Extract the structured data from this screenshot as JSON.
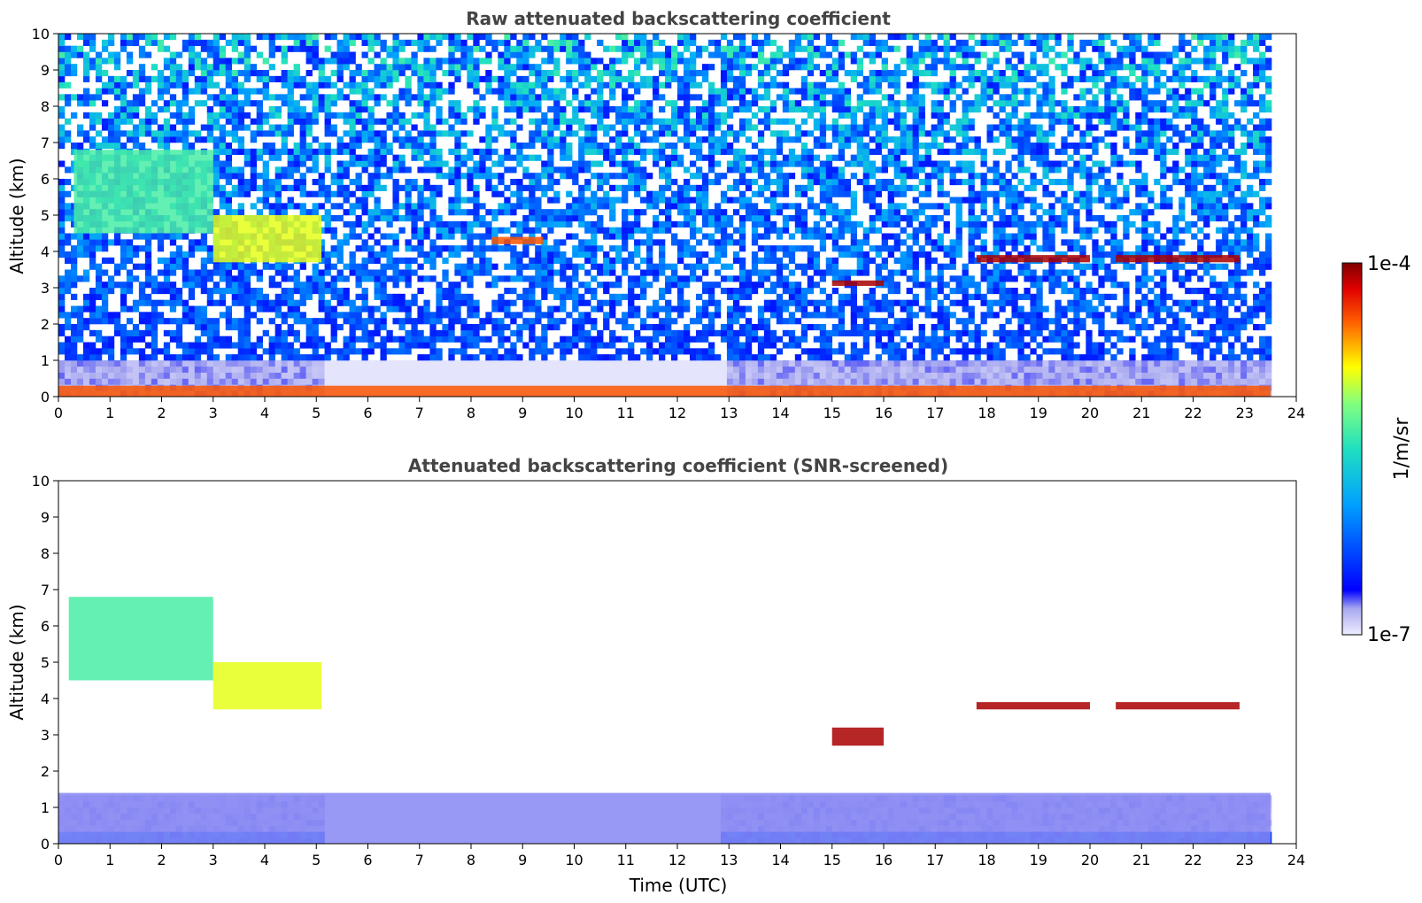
{
  "chart_data": [
    {
      "type": "heatmap",
      "title": "Raw attenuated backscattering coefficient",
      "xlabel": "",
      "ylabel": "Altitude (km)",
      "xlim": [
        0,
        24
      ],
      "ylim": [
        0,
        10
      ],
      "xticks": [
        "0",
        "1",
        "2",
        "3",
        "4",
        "5",
        "6",
        "7",
        "8",
        "9",
        "10",
        "11",
        "12",
        "13",
        "14",
        "15",
        "16",
        "17",
        "18",
        "19",
        "20",
        "21",
        "22",
        "23",
        "24"
      ],
      "yticks": [
        "0",
        "1",
        "2",
        "3",
        "4",
        "5",
        "6",
        "7",
        "8",
        "9",
        "10"
      ],
      "features": [
        {
          "label": "surface layer",
          "x": [
            0,
            23.5
          ],
          "y": [
            0,
            0.3
          ],
          "level": "high"
        },
        {
          "label": "upper cloud",
          "x": [
            0.3,
            3.0
          ],
          "y": [
            4.5,
            6.8
          ],
          "level": "medium"
        },
        {
          "label": "mid cloud",
          "x": [
            3.0,
            5.1
          ],
          "y": [
            3.7,
            5.0
          ],
          "level": "medium-high"
        },
        {
          "label": "thin layer",
          "x": [
            8.4,
            9.4
          ],
          "y": [
            4.2,
            4.4
          ],
          "level": "high"
        },
        {
          "label": "cloud",
          "x": [
            15.0,
            16.0
          ],
          "y": [
            3.05,
            3.2
          ],
          "level": "very high"
        },
        {
          "label": "cloud",
          "x": [
            17.8,
            20.0
          ],
          "y": [
            3.7,
            3.9
          ],
          "level": "very high"
        },
        {
          "label": "cloud",
          "x": [
            20.5,
            22.9
          ],
          "y": [
            3.7,
            3.9
          ],
          "level": "very high"
        }
      ]
    },
    {
      "type": "heatmap",
      "title": "Attenuated backscattering coefficient (SNR-screened)",
      "xlabel": "Time (UTC)",
      "ylabel": "Altitude (km)",
      "xlim": [
        0,
        24
      ],
      "ylim": [
        0,
        10
      ],
      "xticks": [
        "0",
        "1",
        "2",
        "3",
        "4",
        "5",
        "6",
        "7",
        "8",
        "9",
        "10",
        "11",
        "12",
        "13",
        "14",
        "15",
        "16",
        "17",
        "18",
        "19",
        "20",
        "21",
        "22",
        "23",
        "24"
      ],
      "yticks": [
        "0",
        "1",
        "2",
        "3",
        "4",
        "5",
        "6",
        "7",
        "8",
        "9",
        "10"
      ],
      "features": [
        {
          "label": "boundary layer",
          "x": [
            0,
            23.5
          ],
          "y": [
            0,
            1.4
          ],
          "level": "low"
        },
        {
          "label": "upper cloud",
          "x": [
            0.2,
            3.0
          ],
          "y": [
            4.5,
            6.8
          ],
          "level": "medium"
        },
        {
          "label": "mid cloud",
          "x": [
            3.0,
            5.1
          ],
          "y": [
            3.7,
            5.0
          ],
          "level": "medium-high"
        },
        {
          "label": "cloud",
          "x": [
            15.0,
            16.0
          ],
          "y": [
            2.7,
            3.2
          ],
          "level": "very high"
        },
        {
          "label": "cloud",
          "x": [
            17.8,
            20.0
          ],
          "y": [
            3.7,
            3.9
          ],
          "level": "very high"
        },
        {
          "label": "cloud",
          "x": [
            20.5,
            22.9
          ],
          "y": [
            3.7,
            3.9
          ],
          "level": "very high"
        }
      ]
    }
  ],
  "colorbar": {
    "label": "1/m/sr",
    "max_label": "1e-4",
    "min_label": "1e-7",
    "range": [
      1e-07,
      0.0001
    ],
    "scale": "log"
  }
}
